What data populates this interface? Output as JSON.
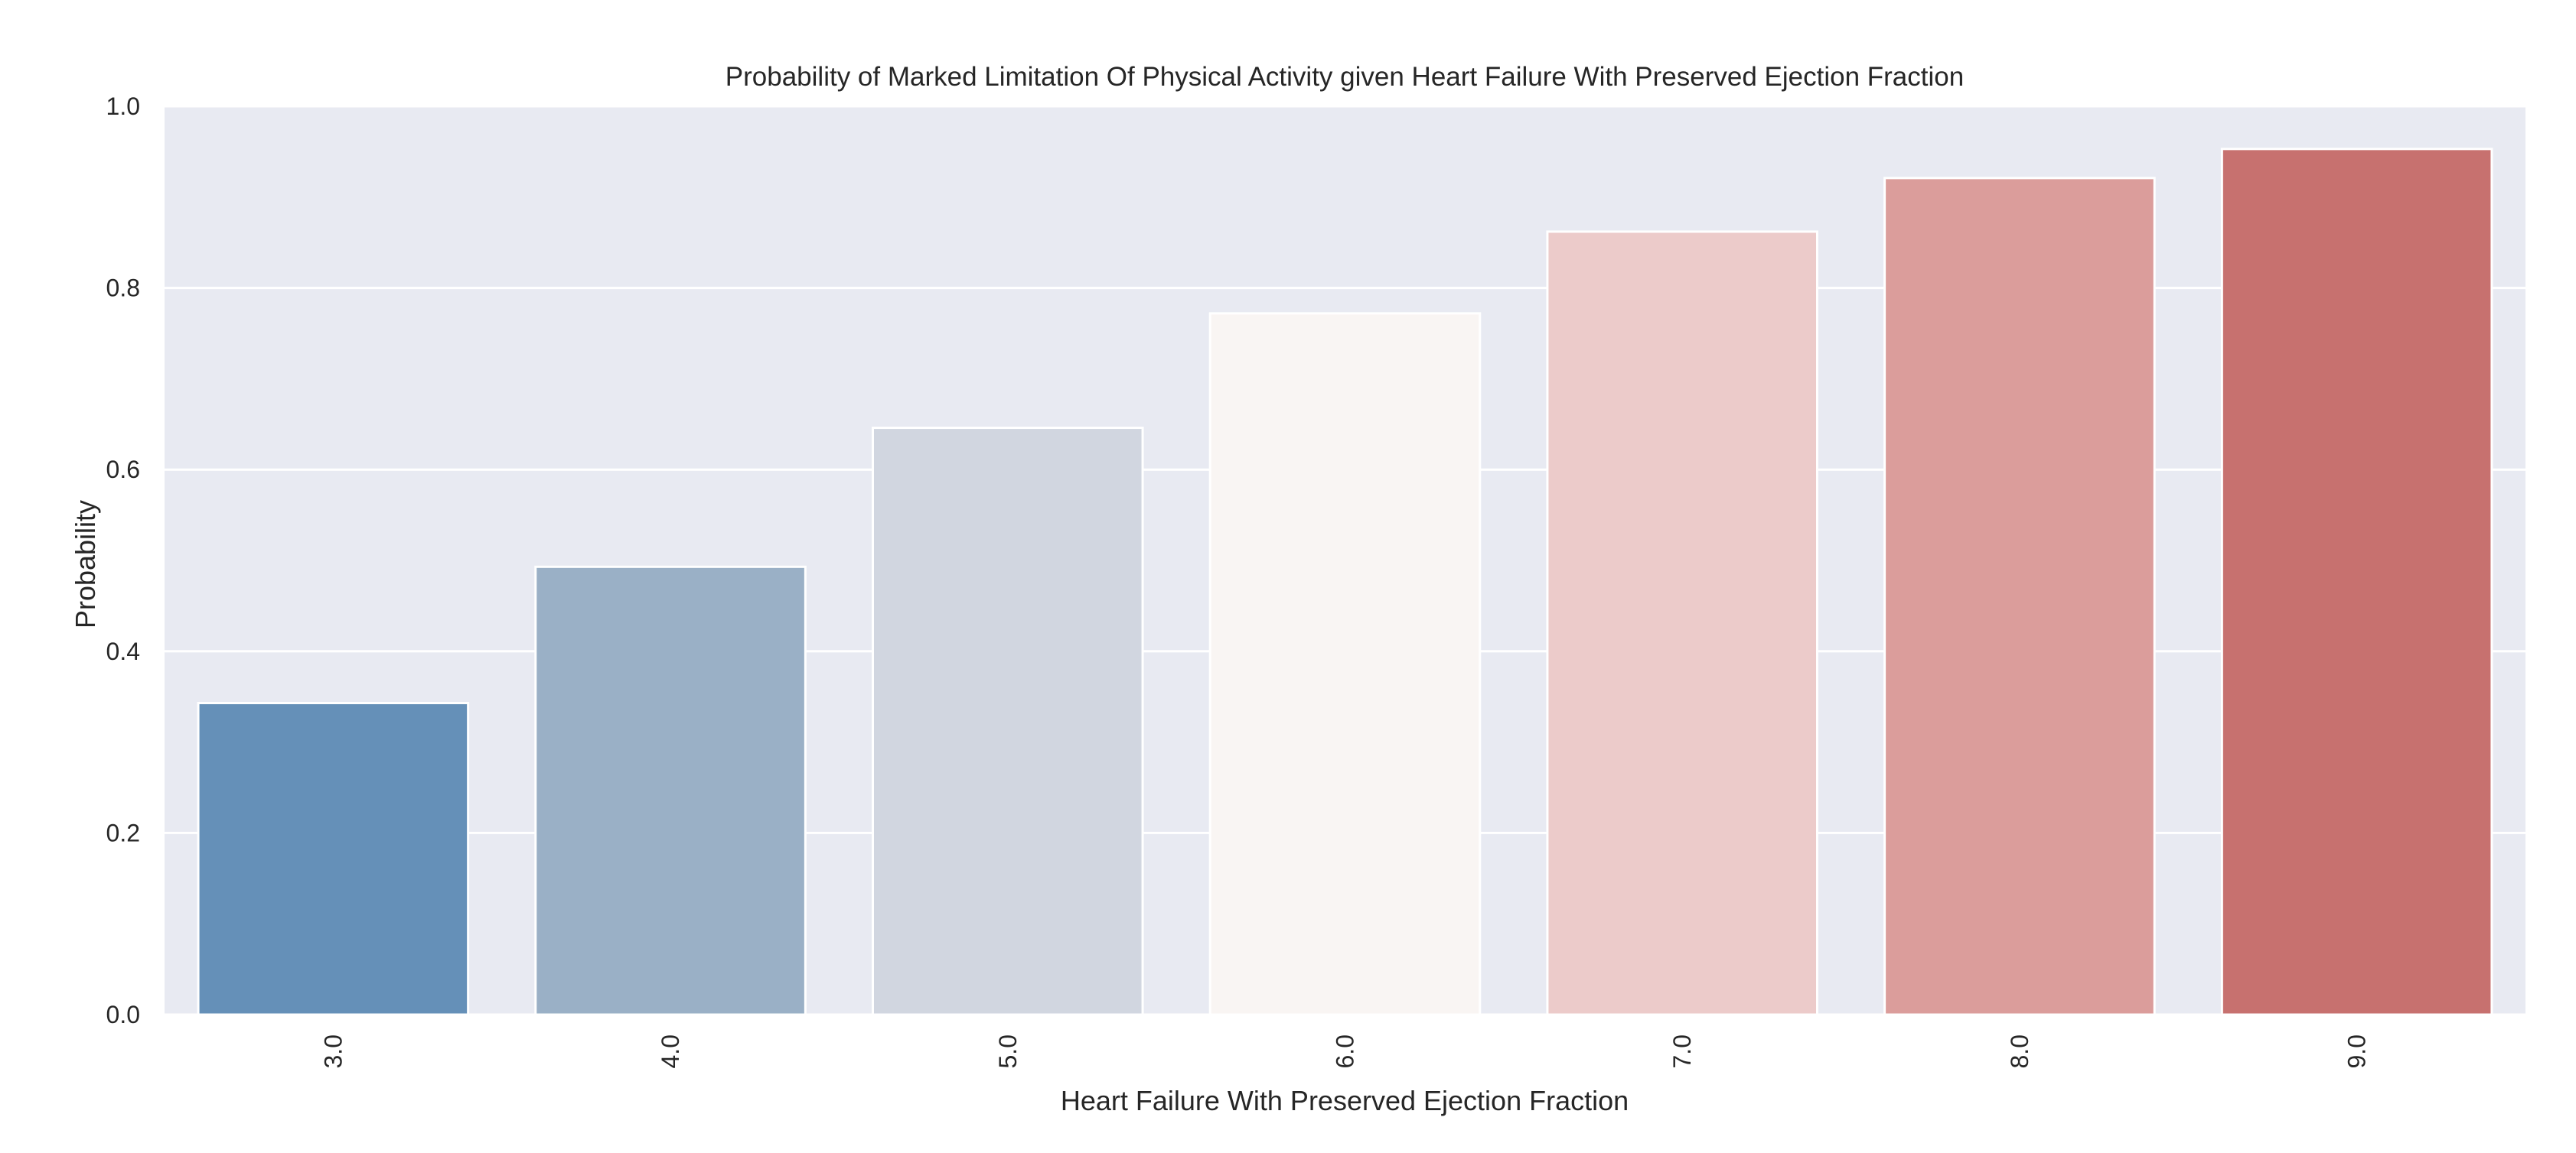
{
  "chart_data": {
    "type": "bar",
    "title": "Probability of Marked Limitation Of Physical Activity given Heart Failure With Preserved Ejection Fraction",
    "xlabel": "Heart Failure With Preserved Ejection Fraction",
    "ylabel": "Probability",
    "categories": [
      "3.0",
      "4.0",
      "5.0",
      "6.0",
      "7.0",
      "8.0",
      "9.0"
    ],
    "values": [
      0.343,
      0.493,
      0.646,
      0.772,
      0.862,
      0.921,
      0.953
    ],
    "colors": [
      "#6590b8",
      "#9ab0c6",
      "#d1d6e0",
      "#f9f5f3",
      "#eccbca",
      "#db9d9b",
      "#c7716f"
    ],
    "ylim": [
      0,
      1.0
    ],
    "yticks": [
      "0.0",
      "0.2",
      "0.4",
      "0.6",
      "0.8",
      "1.0"
    ],
    "grid": true,
    "background_color": "#e8eaf2",
    "legend": "none"
  }
}
